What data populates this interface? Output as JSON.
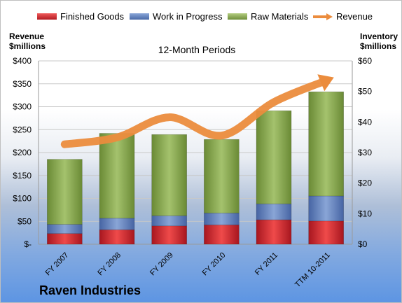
{
  "chart_data": {
    "type": "bar",
    "title": "12-Month Periods",
    "subtitle": "Raven Industries",
    "categories": [
      "FY 2007",
      "FY 2008",
      "FY 2009",
      "FY 2010",
      "FY 2011",
      "TTM 10-2011"
    ],
    "stacked": true,
    "series": [
      {
        "name": "Finished Goods",
        "axis": "right",
        "color": "#d01e2a",
        "values": [
          3.5,
          4.7,
          6.0,
          6.3,
          8.0,
          7.6
        ]
      },
      {
        "name": "Work in Progress",
        "axis": "right",
        "color": "#5f81bf",
        "values": [
          3.0,
          3.8,
          3.3,
          3.9,
          5.2,
          8.2
        ]
      },
      {
        "name": "Raw Materials",
        "axis": "right",
        "color": "#8aab52",
        "values": [
          21.3,
          27.8,
          26.6,
          24.1,
          30.5,
          34.1
        ]
      },
      {
        "name": "Revenue",
        "axis": "left",
        "type": "line",
        "color": "#eb8c3d",
        "values": [
          218,
          233,
          277,
          237,
          310,
          357
        ]
      }
    ],
    "ylabel_left": "Revenue\n$millions",
    "ylabel_right": "Inventory\n$millions",
    "ylim_left": [
      0,
      400
    ],
    "ylim_right": [
      0,
      60
    ],
    "yticks_left": [
      "$-",
      "$50",
      "$100",
      "$150",
      "$200",
      "$250",
      "$300",
      "$350",
      "$400"
    ],
    "yticks_right": [
      "$0",
      "$10",
      "$20",
      "$30",
      "$40",
      "$50",
      "$60"
    ],
    "grid": true,
    "legend_position": "top"
  }
}
